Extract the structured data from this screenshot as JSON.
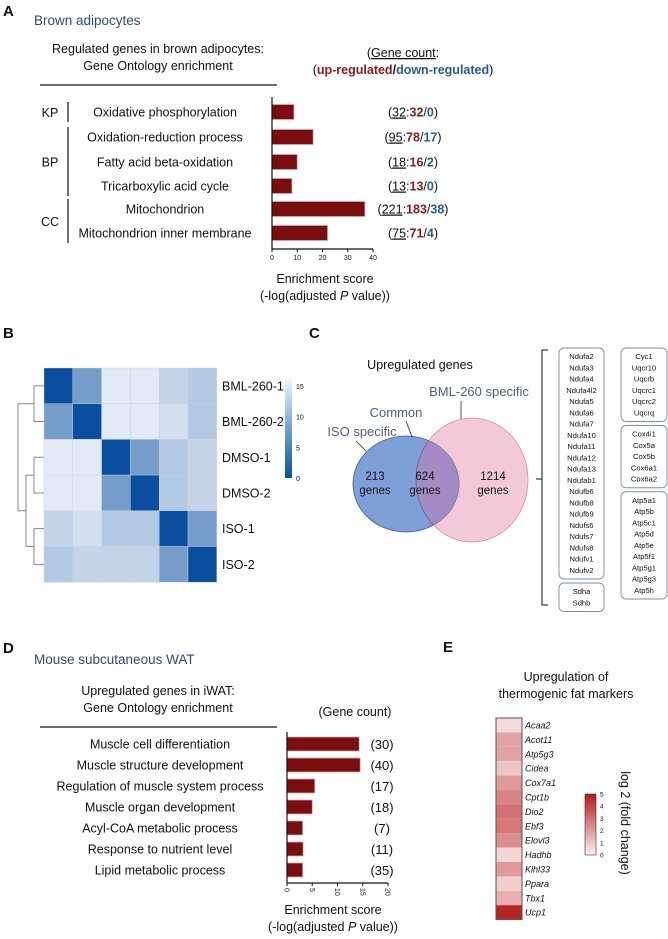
{
  "panel_A": {
    "letter": "A",
    "subtitle": "Brown adipocytes",
    "title_line1": "Regulated genes in brown adipocytes:",
    "title_line2": "Gene Ontology enrichment",
    "legend_line1": "Gene count",
    "legend_up": "up-regulated",
    "legend_down": "down-regulated",
    "colors": {
      "bar": "#7a0d0d",
      "up": "#8b1a1a",
      "down": "#245c96"
    }
  },
  "panel_D": {
    "letter": "D",
    "subtitle": "Mouse subcutaneous WAT",
    "title_line1": "Upregulated genes in iWAT:",
    "title_line2": "Gene Ontology enrichment",
    "legend": "(Gene count)"
  },
  "panel_B": {
    "letter": "B"
  },
  "panel_C": {
    "letter": "C",
    "title": "Upregulated genes",
    "label_bml": "BML-260 specific",
    "label_common": "Common",
    "label_iso": "ISO specific",
    "iso_count": "213",
    "common_count": "624",
    "bml_count": "1214",
    "genes_word": "genes",
    "colors": {
      "iso": "#7f9fd8",
      "bml": "#f3c9d9",
      "overlap": "#a58bc4"
    },
    "gene_boxes": [
      {
        "column": 1,
        "genes": [
          "Ndufa2",
          "Ndufa3",
          "Ndufa4",
          "Ndufa4l2",
          "Ndufa5",
          "Ndufa6",
          "Ndufa7",
          "Ndufa10",
          "Ndufa11",
          "Ndufa12",
          "Ndufa13",
          "Ndufab1",
          "Ndufb6",
          "Ndufb8",
          "Ndufb9",
          "Ndufs6",
          "Ndufs7",
          "Ndufs8",
          "Ndufv1",
          "Ndufv2"
        ]
      },
      {
        "column": 1,
        "genes": [
          "Sdha",
          "Sdhb"
        ]
      },
      {
        "column": 2,
        "genes": [
          "Cyc1",
          "Uqcr10",
          "Uqcrb",
          "Uqcrc1",
          "Uqcrc2",
          "Uqcrq"
        ]
      },
      {
        "column": 2,
        "genes": [
          "Cox4i1",
          "Cox5a",
          "Cox5b",
          "Cox6a1",
          "Cox6a2"
        ]
      },
      {
        "column": 2,
        "genes": [
          "Atp5a1",
          "Atp5b",
          "Atp5c1",
          "Atp5d",
          "Atp5e",
          "Atp5f1",
          "Atp5g1",
          "Atp5g3",
          "Atp5h"
        ]
      }
    ]
  },
  "panel_E": {
    "letter": "E",
    "title_line1": "Upregulation of",
    "title_line2": "thermogenic fat markers"
  },
  "chart_data": [
    {
      "id": "A",
      "type": "bar",
      "orientation": "horizontal",
      "groups": [
        {
          "name": "KP",
          "rows": [
            0
          ]
        },
        {
          "name": "BP",
          "rows": [
            1,
            2,
            3
          ]
        },
        {
          "name": "CC",
          "rows": [
            4,
            5
          ]
        }
      ],
      "categories": [
        "Oxidative phosphorylation",
        "Oxidation-reduction process",
        "Fatty acid beta-oxidation",
        "Tricarboxylic acid cycle",
        "Mitochondrion",
        "Mitochondrion inner membrane"
      ],
      "values": [
        8.7,
        16.3,
        10,
        7.9,
        36.8,
        22
      ],
      "gene_counts": [
        {
          "total": "32",
          "up": "32",
          "down": "0"
        },
        {
          "total": "95",
          "up": "78",
          "down": "17"
        },
        {
          "total": "18",
          "up": "16",
          "down": "2"
        },
        {
          "total": "13",
          "up": "13",
          "down": "0"
        },
        {
          "total": "221",
          "up": "183",
          "down": "38"
        },
        {
          "total": "75",
          "up": "71",
          "down": "4"
        }
      ],
      "xlabel_line1": "Enrichment score",
      "xlabel_line2_pre": "(-log(adjusted ",
      "xlabel_line2_italic": "P",
      "xlabel_line2_post": " value))",
      "xlim": [
        0,
        40
      ],
      "xticks": [
        "0",
        "10",
        "20",
        "30",
        "40"
      ]
    },
    {
      "id": "B",
      "type": "heatmap",
      "labels": [
        "BML-260-1",
        "BML-260-2",
        "DMSO-1",
        "DMSO-2",
        "ISO-1",
        "ISO-2"
      ],
      "matrix": [
        [
          0,
          7,
          14,
          14,
          12,
          11
        ],
        [
          7,
          0,
          14,
          14,
          13,
          11
        ],
        [
          14,
          14,
          0,
          7,
          11,
          12
        ],
        [
          14,
          14,
          7,
          0,
          11,
          12
        ],
        [
          12,
          13,
          11,
          11,
          0,
          7
        ],
        [
          11,
          12,
          12,
          12,
          7,
          0
        ]
      ],
      "colorbar_range": [
        0,
        15
      ],
      "colorbar_ticks": [
        "15",
        "10",
        "5",
        "0"
      ],
      "colors": {
        "low": "#0a4f9f",
        "high": "#f1f5fb"
      },
      "dendrogram": true
    },
    {
      "id": "D",
      "type": "bar",
      "orientation": "horizontal",
      "categories": [
        "Muscle cell differentiation",
        "Muscle structure development",
        "Regulation of muscle system process",
        "Muscle organ development",
        "Acyl-CoA metabolic process",
        "Response to nutrient level",
        "Lipid metabolic process"
      ],
      "values": [
        14.3,
        14.5,
        5.5,
        5,
        3.1,
        3.2,
        3.1
      ],
      "gene_counts": [
        "(30)",
        "(40)",
        "(17)",
        "(18)",
        "(7)",
        "(11)",
        "(35)"
      ],
      "xlabel_line1": "Enrichment score",
      "xlabel_line2_pre": "(-log(adjusted ",
      "xlabel_line2_italic": "P",
      "xlabel_line2_post": " value))",
      "xlim": [
        0,
        20
      ],
      "xticks": [
        "0",
        "5",
        "10",
        "15",
        "20"
      ]
    },
    {
      "id": "E",
      "type": "heatmap",
      "genes": [
        "Acaa2",
        "Acot11",
        "Atp5g3",
        "Cidea",
        "Cox7a1",
        "Cpt1b",
        "Dio2",
        "Ebf3",
        "Elovl3",
        "Hadhb",
        "Klhl33",
        "Ppara",
        "Tbx1",
        "Ucp1"
      ],
      "values": [
        0.5,
        1.8,
        1.8,
        1.0,
        2.0,
        2.5,
        3.0,
        2.8,
        2.3,
        0.6,
        2.0,
        0.8,
        1.5,
        4.8
      ],
      "colorbar_range": [
        0,
        5
      ],
      "colorbar_ticks": [
        "5",
        "4",
        "3",
        "2",
        "1",
        "0"
      ],
      "colorbar_label": "log 2 (fold change)",
      "colors": {
        "low": "#fcf0f0",
        "high": "#b41a1a"
      }
    }
  ]
}
